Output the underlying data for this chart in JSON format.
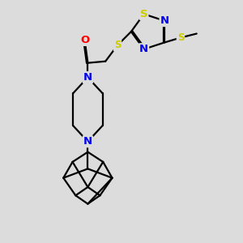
{
  "bg_color": "#dcdcdc",
  "atom_colors": {
    "C": "#000000",
    "N": "#0000ee",
    "O": "#ff0000",
    "S": "#cccc00"
  },
  "bond_color": "#000000",
  "line_width": 1.6,
  "font_size": 9.5
}
